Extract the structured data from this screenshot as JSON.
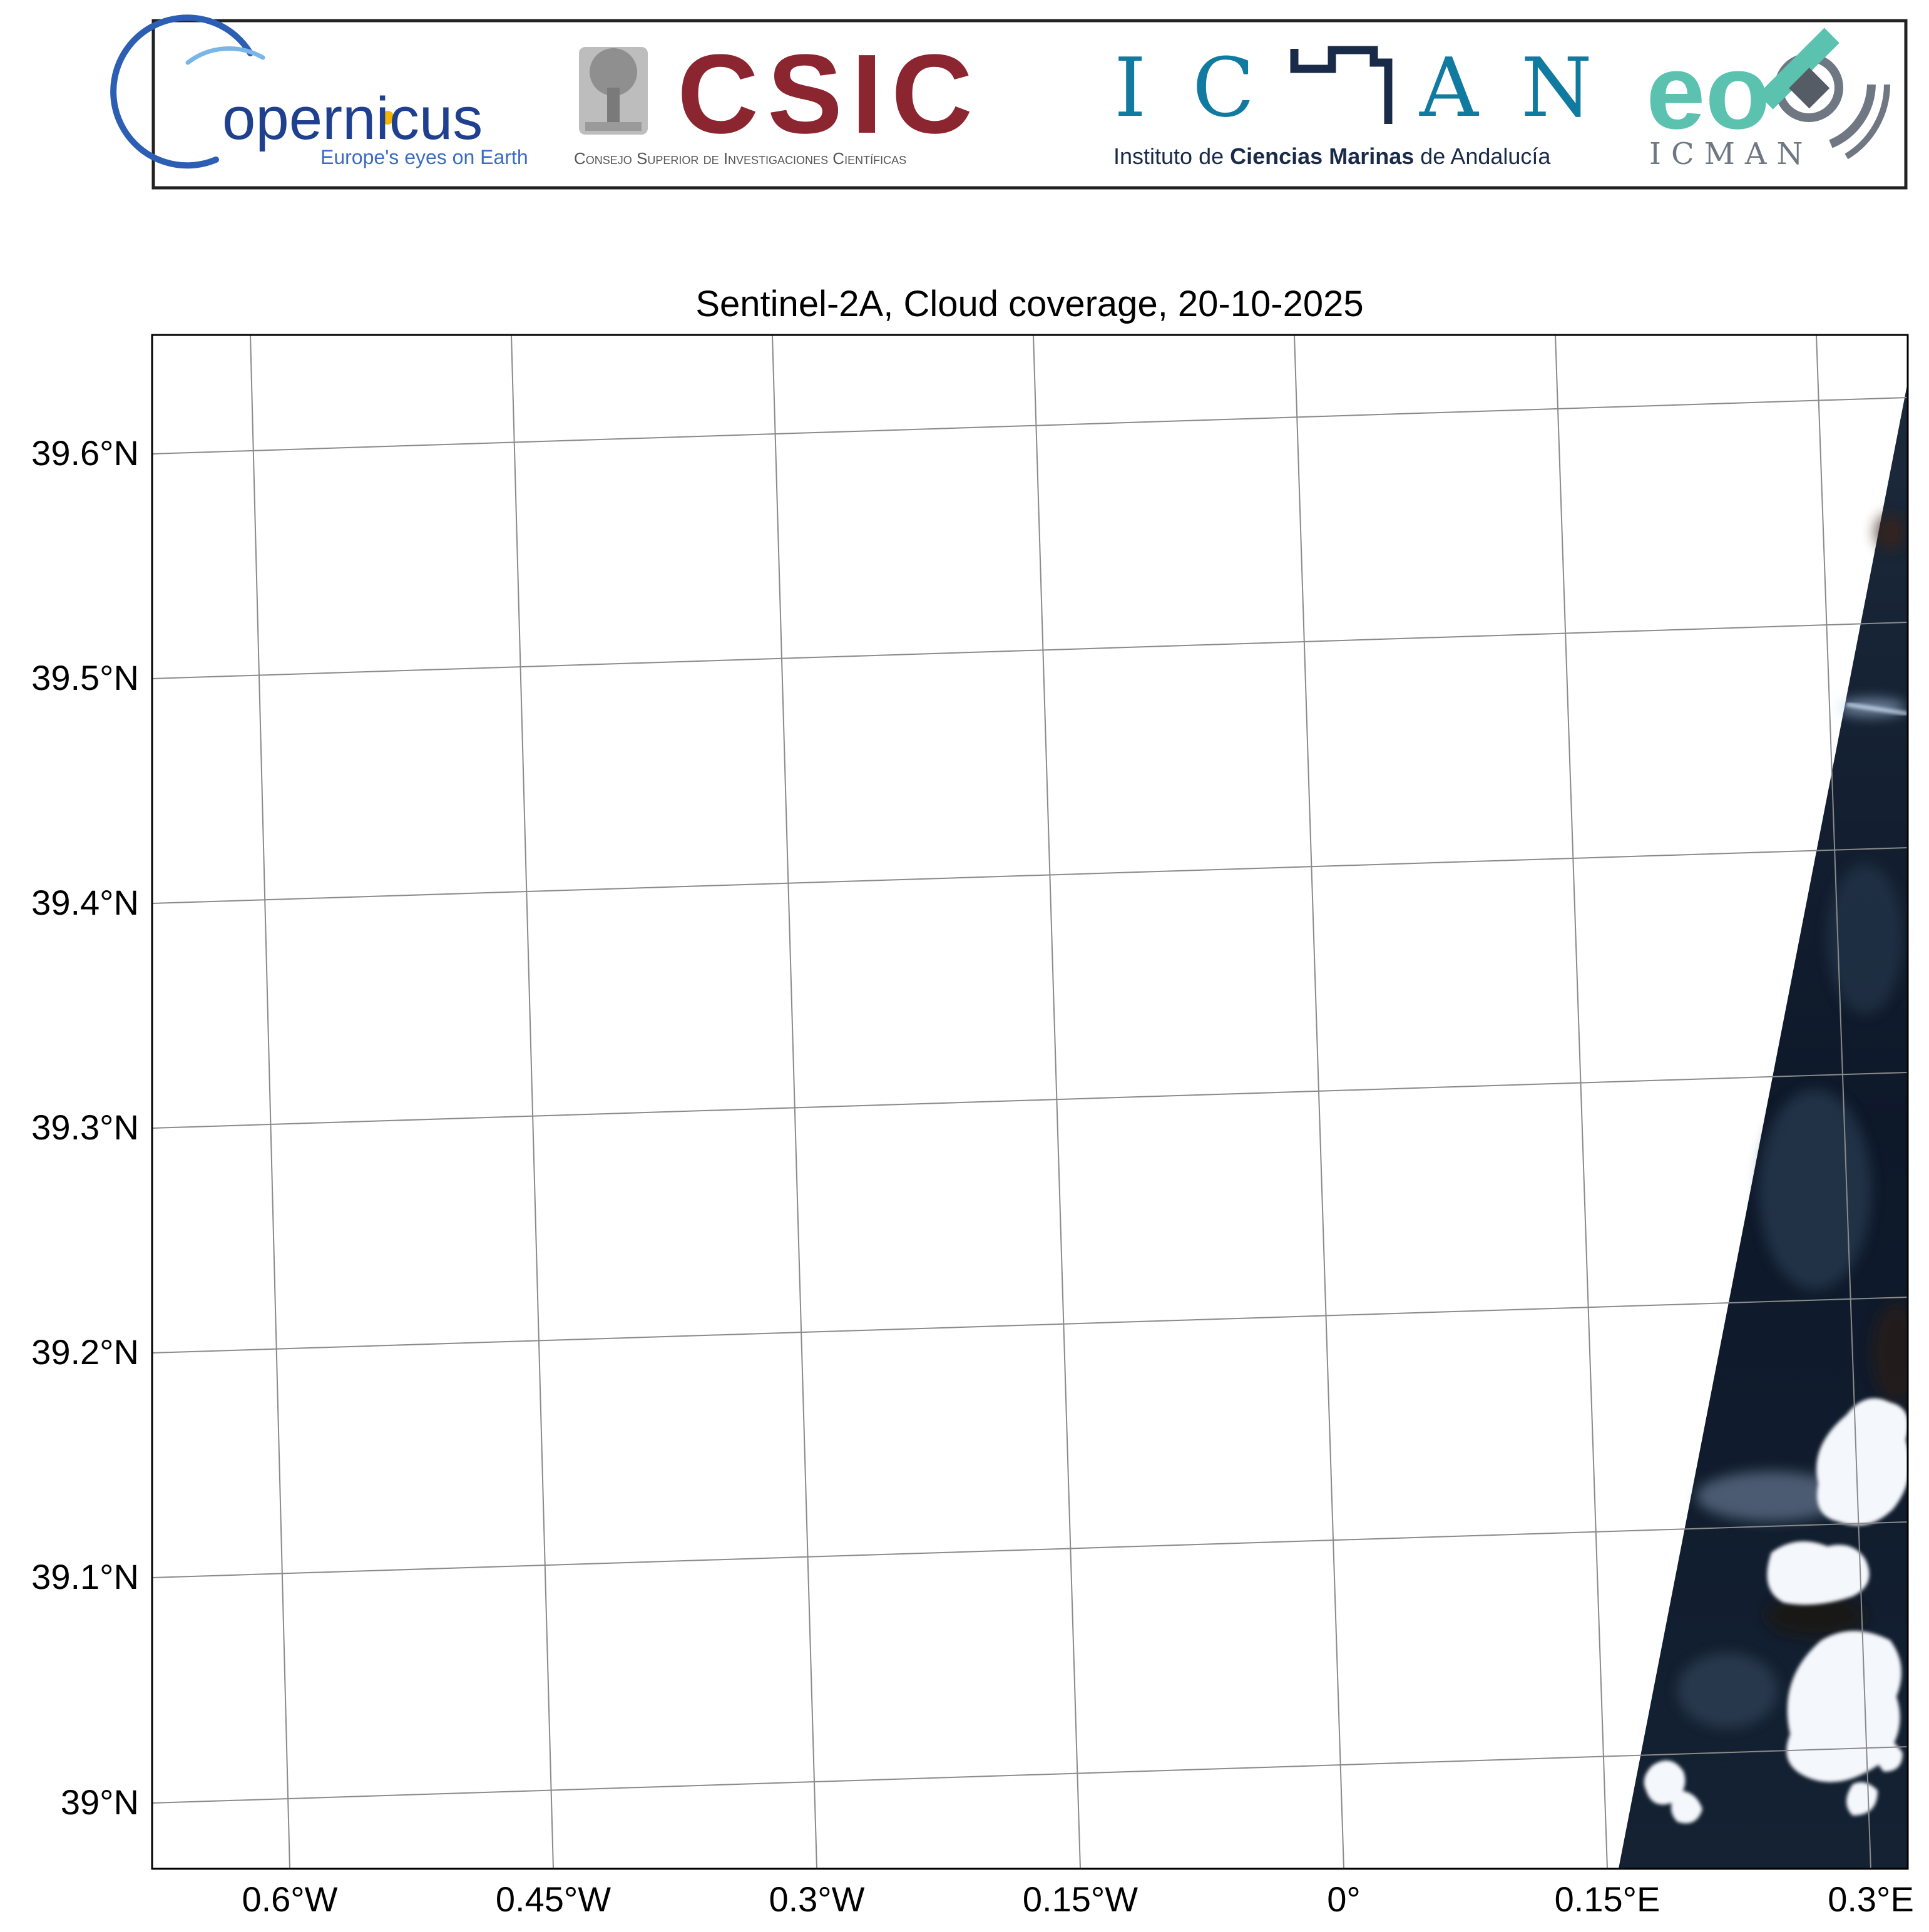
{
  "banner": {
    "copernicus": {
      "name": "opernicus",
      "tagline": "Europe's eyes on Earth"
    },
    "csic": {
      "name": "CSIC",
      "subtitle": "Consejo Superior de Investigaciones Científicas"
    },
    "icman": {
      "letters": [
        "I",
        "C",
        "A",
        "N"
      ],
      "subtitle_pre": "Instituto de ",
      "subtitle_b1": "Ciencias Marinas",
      "subtitle_post": " de Andalucía"
    },
    "eo": {
      "name": "eo",
      "sub": "ICMAN"
    },
    "colors": {
      "copernicus_blue": "#1f3f8f",
      "copernicus_tag": "#3b6cc4",
      "csic_red": "#8b2630",
      "icman_teal": "#117aa0",
      "icman_navy": "#1a2b4a",
      "eo_green": "#5cc2b0",
      "eo_gray": "#6f7782"
    }
  },
  "map": {
    "title": "Sentinel-2A, Cloud coverage, 20-10-2025",
    "lon_ticks": [
      "0.6°W",
      "0.45°W",
      "0.3°W",
      "0.15°W",
      "0°",
      "0.15°E",
      "0.3°E"
    ],
    "lat_ticks": [
      "39.6°N",
      "39.5°N",
      "39.4°N",
      "39.3°N",
      "39.2°N",
      "39.1°N",
      "39°N"
    ],
    "grid": true,
    "imagery": "Sentinel-2A true color swath over sea, partly covered by clouds, on the eastern edge",
    "colors": {
      "sea": "#0b1526",
      "cloud": "#f4f7fb",
      "grid": "#8a8a8a"
    }
  }
}
